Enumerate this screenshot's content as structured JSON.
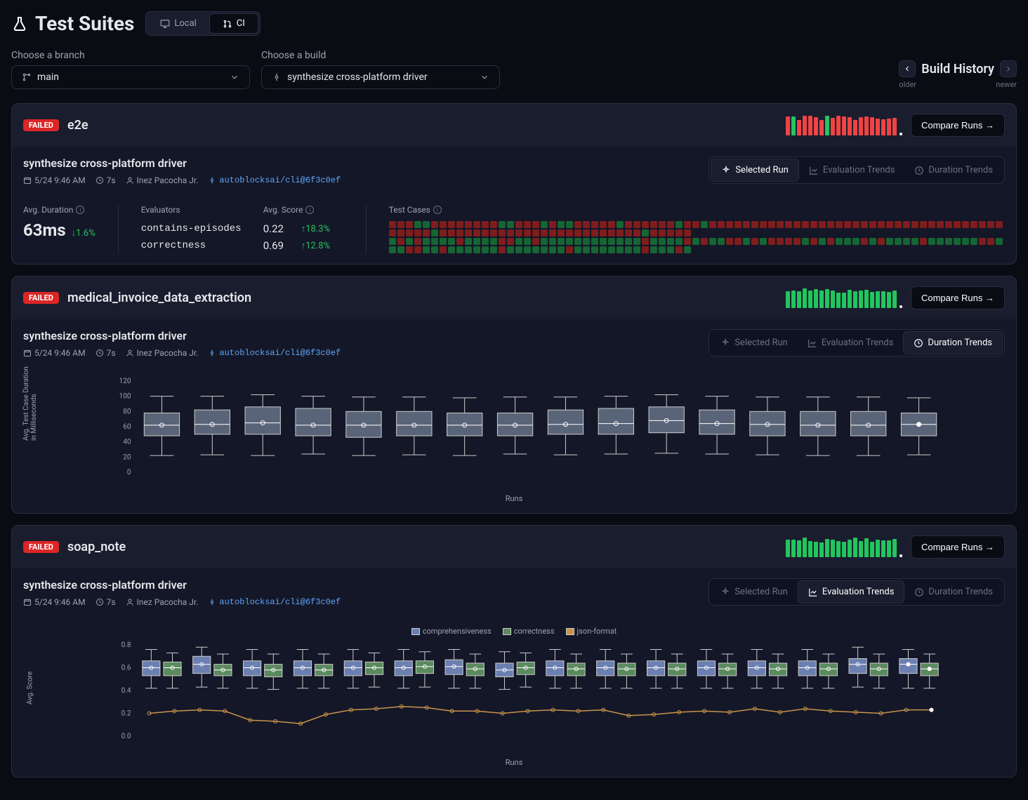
{
  "page": {
    "title": "Test Suites"
  },
  "tabs": {
    "local": "Local",
    "ci": "CI",
    "active": "ci"
  },
  "selectors": {
    "branch_label": "Choose a branch",
    "branch_value": "main",
    "build_label": "Choose a build",
    "build_value": "synthesize cross-platform driver"
  },
  "build_history": {
    "title": "Build History",
    "older": "older",
    "newer": "newer"
  },
  "compare_button": "Compare Runs →",
  "view_tabs": {
    "selected": "Selected Run",
    "eval": "Evaluation Trends",
    "duration": "Duration Trends"
  },
  "run_meta": {
    "title": "synthesize cross-platform driver",
    "date": "5/24 9:46 AM",
    "duration": "7s",
    "user": "Inez Pacocha Jr.",
    "commit": "autoblocksai/cli@6f3c0ef"
  },
  "labels": {
    "avg_duration": "Avg. Duration",
    "evaluators": "Evaluators",
    "avg_score": "Avg. Score",
    "test_cases": "Test Cases"
  },
  "suites": [
    {
      "id": "e2e",
      "status": "FAILED",
      "name": "e2e",
      "spark": [
        "r",
        "g",
        "r",
        "r",
        "r",
        "r",
        "r",
        "g",
        "r",
        "r",
        "r",
        "r",
        "r",
        "r",
        "r",
        "r",
        "r",
        "r",
        "r",
        "r"
      ],
      "active_view": "selected",
      "avg_duration": "63ms",
      "avg_duration_delta": "1.6%",
      "avg_duration_dir": "down",
      "evaluators": [
        {
          "name": "contains-episodes",
          "score": "0.22",
          "delta": "18.3%",
          "cells": "rrrggrrrrrrrrggrrrgrggrrrrrgrrrrrrgrrgrrrrrrrrrrrrrrrrrrrrrrrrrrrrrrrrrrrrrrrrgrrrrrrrrrrrrrrrrrrrrrrrrgrrrrr"
        },
        {
          "name": "correctness",
          "score": "0.69",
          "delta": "12.8%",
          "cells": "grgrggggrggggrrggrggggggggggggrggggrgrggrrgrgrrrrgrgrgggrgrggggrggggggrrgggrrggrggggggrgggggggrggggggggrgggrg"
        }
      ]
    },
    {
      "id": "medical_invoice_data_extraction",
      "status": "FAILED",
      "name": "medical_invoice_data_extraction",
      "spark": [
        "g",
        "g",
        "g",
        "g",
        "g",
        "g",
        "g",
        "g",
        "g",
        "g",
        "g",
        "g",
        "g",
        "g",
        "g",
        "g",
        "g",
        "g",
        "g",
        "g"
      ],
      "active_view": "duration",
      "boxplot": {
        "ylabel": "Avg. Test Case Duration\\nin Milliseconds",
        "xlabel": "Runs",
        "ylim": [
          0,
          120
        ],
        "ytick_step": 20,
        "box_color": "#5a6478",
        "whisker_color": "#cccccc",
        "median_color": "#ffffff",
        "background": "#141727",
        "boxes": [
          {
            "min": 22,
            "q1": 48,
            "med": 62,
            "q3": 78,
            "max": 100
          },
          {
            "min": 23,
            "q1": 50,
            "med": 63,
            "q3": 82,
            "max": 100
          },
          {
            "min": 22,
            "q1": 50,
            "med": 65,
            "q3": 86,
            "max": 102
          },
          {
            "min": 24,
            "q1": 48,
            "med": 62,
            "q3": 84,
            "max": 100
          },
          {
            "min": 22,
            "q1": 46,
            "med": 62,
            "q3": 80,
            "max": 99
          },
          {
            "min": 23,
            "q1": 48,
            "med": 62,
            "q3": 80,
            "max": 99
          },
          {
            "min": 22,
            "q1": 48,
            "med": 62,
            "q3": 78,
            "max": 98
          },
          {
            "min": 24,
            "q1": 48,
            "med": 62,
            "q3": 78,
            "max": 99
          },
          {
            "min": 23,
            "q1": 50,
            "med": 63,
            "q3": 82,
            "max": 99
          },
          {
            "min": 24,
            "q1": 50,
            "med": 64,
            "q3": 84,
            "max": 100
          },
          {
            "min": 25,
            "q1": 52,
            "med": 68,
            "q3": 86,
            "max": 102
          },
          {
            "min": 24,
            "q1": 50,
            "med": 64,
            "q3": 82,
            "max": 100
          },
          {
            "min": 23,
            "q1": 48,
            "med": 63,
            "q3": 80,
            "max": 99
          },
          {
            "min": 22,
            "q1": 48,
            "med": 62,
            "q3": 80,
            "max": 99
          },
          {
            "min": 22,
            "q1": 48,
            "med": 62,
            "q3": 80,
            "max": 99
          },
          {
            "min": 23,
            "q1": 48,
            "med": 63,
            "q3": 78,
            "max": 98
          }
        ]
      }
    },
    {
      "id": "soap_note",
      "status": "FAILED",
      "name": "soap_note",
      "spark": [
        "g",
        "g",
        "g",
        "g",
        "g",
        "g",
        "g",
        "g",
        "g",
        "g",
        "g",
        "g",
        "g",
        "g",
        "g",
        "g",
        "g",
        "g",
        "g",
        "g"
      ],
      "active_view": "eval",
      "eval_chart": {
        "ylabel": "Avg. Score",
        "xlabel": "Runs",
        "ylim": [
          0,
          0.8
        ],
        "ytick_step": 0.2,
        "legend": [
          {
            "name": "comprehensiveness",
            "color": "#6b7fb0"
          },
          {
            "name": "correctness",
            "color": "#5a8a5e"
          },
          {
            "name": "json-format",
            "color": "#c9944a"
          }
        ],
        "series": {
          "comprehensiveness": [
            {
              "min": 0.42,
              "q1": 0.53,
              "med": 0.6,
              "q3": 0.66,
              "max": 0.76
            },
            {
              "min": 0.43,
              "q1": 0.55,
              "med": 0.63,
              "q3": 0.7,
              "max": 0.78
            },
            {
              "min": 0.42,
              "q1": 0.53,
              "med": 0.6,
              "q3": 0.66,
              "max": 0.76
            },
            {
              "min": 0.42,
              "q1": 0.53,
              "med": 0.6,
              "q3": 0.66,
              "max": 0.76
            },
            {
              "min": 0.42,
              "q1": 0.53,
              "med": 0.6,
              "q3": 0.66,
              "max": 0.76
            },
            {
              "min": 0.42,
              "q1": 0.53,
              "med": 0.6,
              "q3": 0.66,
              "max": 0.76
            },
            {
              "min": 0.42,
              "q1": 0.54,
              "med": 0.61,
              "q3": 0.67,
              "max": 0.76
            },
            {
              "min": 0.41,
              "q1": 0.52,
              "med": 0.58,
              "q3": 0.64,
              "max": 0.74
            },
            {
              "min": 0.42,
              "q1": 0.53,
              "med": 0.6,
              "q3": 0.66,
              "max": 0.76
            },
            {
              "min": 0.42,
              "q1": 0.53,
              "med": 0.6,
              "q3": 0.66,
              "max": 0.76
            },
            {
              "min": 0.42,
              "q1": 0.53,
              "med": 0.6,
              "q3": 0.66,
              "max": 0.76
            },
            {
              "min": 0.42,
              "q1": 0.53,
              "med": 0.6,
              "q3": 0.66,
              "max": 0.76
            },
            {
              "min": 0.42,
              "q1": 0.53,
              "med": 0.6,
              "q3": 0.66,
              "max": 0.76
            },
            {
              "min": 0.42,
              "q1": 0.53,
              "med": 0.6,
              "q3": 0.66,
              "max": 0.76
            },
            {
              "min": 0.43,
              "q1": 0.55,
              "med": 0.63,
              "q3": 0.68,
              "max": 0.78
            },
            {
              "min": 0.42,
              "q1": 0.55,
              "med": 0.63,
              "q3": 0.68,
              "max": 0.76
            }
          ],
          "correctness": [
            {
              "min": 0.42,
              "q1": 0.53,
              "med": 0.6,
              "q3": 0.65,
              "max": 0.73
            },
            {
              "min": 0.42,
              "q1": 0.53,
              "med": 0.58,
              "q3": 0.63,
              "max": 0.72
            },
            {
              "min": 0.41,
              "q1": 0.52,
              "med": 0.58,
              "q3": 0.63,
              "max": 0.72
            },
            {
              "min": 0.42,
              "q1": 0.53,
              "med": 0.58,
              "q3": 0.63,
              "max": 0.72
            },
            {
              "min": 0.43,
              "q1": 0.54,
              "med": 0.6,
              "q3": 0.65,
              "max": 0.73
            },
            {
              "min": 0.43,
              "q1": 0.55,
              "med": 0.61,
              "q3": 0.66,
              "max": 0.74
            },
            {
              "min": 0.42,
              "q1": 0.53,
              "med": 0.59,
              "q3": 0.64,
              "max": 0.72
            },
            {
              "min": 0.43,
              "q1": 0.54,
              "med": 0.6,
              "q3": 0.65,
              "max": 0.73
            },
            {
              "min": 0.42,
              "q1": 0.53,
              "med": 0.59,
              "q3": 0.64,
              "max": 0.72
            },
            {
              "min": 0.42,
              "q1": 0.53,
              "med": 0.59,
              "q3": 0.64,
              "max": 0.72
            },
            {
              "min": 0.42,
              "q1": 0.53,
              "med": 0.59,
              "q3": 0.64,
              "max": 0.72
            },
            {
              "min": 0.42,
              "q1": 0.53,
              "med": 0.59,
              "q3": 0.64,
              "max": 0.72
            },
            {
              "min": 0.42,
              "q1": 0.53,
              "med": 0.59,
              "q3": 0.64,
              "max": 0.72
            },
            {
              "min": 0.42,
              "q1": 0.53,
              "med": 0.59,
              "q3": 0.64,
              "max": 0.72
            },
            {
              "min": 0.42,
              "q1": 0.53,
              "med": 0.59,
              "q3": 0.64,
              "max": 0.72
            },
            {
              "min": 0.42,
              "q1": 0.53,
              "med": 0.59,
              "q3": 0.64,
              "max": 0.72
            }
          ],
          "json_format": [
            0.2,
            0.22,
            0.23,
            0.22,
            0.14,
            0.13,
            0.11,
            0.19,
            0.23,
            0.24,
            0.26,
            0.25,
            0.22,
            0.22,
            0.2,
            0.22,
            0.23,
            0.22,
            0.23,
            0.18,
            0.19,
            0.21,
            0.22,
            0.21,
            0.24,
            0.21,
            0.24,
            0.22,
            0.21,
            0.2,
            0.23,
            0.23
          ]
        }
      }
    }
  ]
}
